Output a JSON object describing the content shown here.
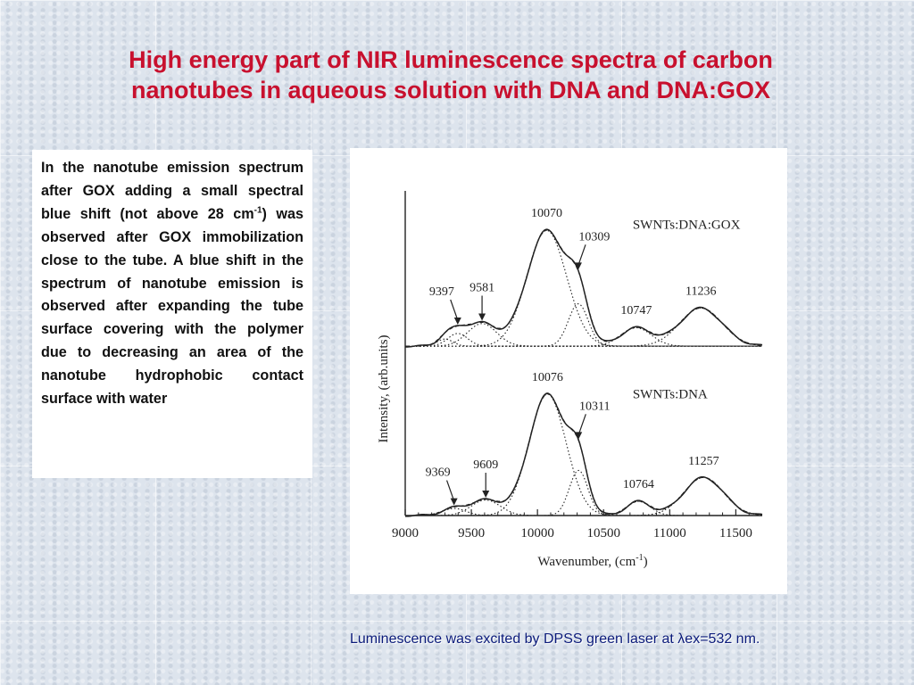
{
  "slide": {
    "title_line1": "High energy part of NIR luminescence spectra of carbon",
    "title_line2": "nanotubes in aqueous solution with DNA and DNA:GOX",
    "body_text_main": "In the nanotube emission spectrum after GOX adding a small spectral blue shift (not above 28 cm",
    "body_text_sup": "-1",
    "body_text_rest": ") was observed after GOX immobilization close to the tube. A blue shift in the spectrum of nanotube emission is observed after expanding the tube surface covering with the polymer due to decreasing an area of the nanotube hydrophobic contact surface with water",
    "footnote": "Luminescence was excited by DPSS green laser at λex=532 nm."
  },
  "colors": {
    "title": "#c8102e",
    "footnote": "#0a1a7a",
    "curve": "#222222"
  },
  "chart_data": {
    "type": "line",
    "xlabel": "Wavenumber, (cm",
    "xlabel_sup": "-1",
    "xlabel_tail": ")",
    "ylabel": "Intensity, (arb.units)",
    "xlim": [
      9000,
      11700
    ],
    "xticks": [
      9000,
      9500,
      10000,
      10500,
      11000,
      11500
    ],
    "ylim": [
      0,
      2.3
    ],
    "panels": [
      {
        "name": "SWNTs:DNA:GOX",
        "baseline": 1.2,
        "components": [
          {
            "center": 9300,
            "amp": 0.05,
            "width": 60
          },
          {
            "center": 9397,
            "amp": 0.09,
            "width": 75
          },
          {
            "center": 9581,
            "amp": 0.16,
            "width": 110
          },
          {
            "center": 10070,
            "amp": 0.82,
            "width": 150
          },
          {
            "center": 10309,
            "amp": 0.3,
            "width": 75
          },
          {
            "center": 10747,
            "amp": 0.13,
            "width": 115
          },
          {
            "center": 11236,
            "amp": 0.27,
            "width": 160
          }
        ],
        "peak_labels": [
          {
            "value": "9397",
            "x": 9397,
            "arrow": true
          },
          {
            "value": "9581",
            "x": 9581,
            "arrow": true
          },
          {
            "value": "10070",
            "x": 10070,
            "arrow": false
          },
          {
            "value": "10309",
            "x": 10309,
            "arrow": true
          },
          {
            "value": "10747",
            "x": 10747,
            "arrow": false
          },
          {
            "value": "11236",
            "x": 11236,
            "arrow": false
          }
        ]
      },
      {
        "name": "SWNTs:DNA",
        "baseline": 0.0,
        "components": [
          {
            "center": 9369,
            "amp": 0.05,
            "width": 90
          },
          {
            "center": 9609,
            "amp": 0.11,
            "width": 110
          },
          {
            "center": 10076,
            "amp": 0.86,
            "width": 140
          },
          {
            "center": 10311,
            "amp": 0.32,
            "width": 70
          },
          {
            "center": 10764,
            "amp": 0.1,
            "width": 90
          },
          {
            "center": 11257,
            "amp": 0.27,
            "width": 150
          }
        ],
        "peak_labels": [
          {
            "value": "9369",
            "x": 9369,
            "arrow": true
          },
          {
            "value": "9609",
            "x": 9609,
            "arrow": true
          },
          {
            "value": "10076",
            "x": 10076,
            "arrow": false
          },
          {
            "value": "10311",
            "x": 10311,
            "arrow": true
          },
          {
            "value": "10764",
            "x": 10764,
            "arrow": false
          },
          {
            "value": "11257",
            "x": 11257,
            "arrow": false
          }
        ]
      }
    ]
  }
}
